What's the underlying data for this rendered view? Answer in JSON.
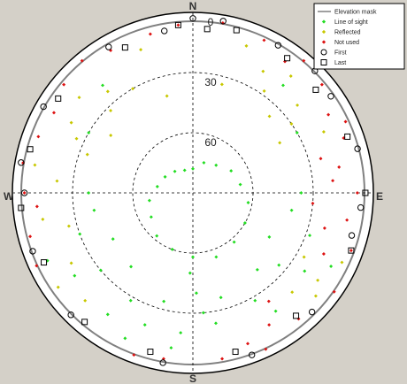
{
  "chart_data": {
    "type": "scatter",
    "projection": "polar-skyplot",
    "directions": {
      "north": "N",
      "east": "E",
      "south": "S",
      "west": "W"
    },
    "elevation_rings": [
      {
        "elevation": 0,
        "label": "0"
      },
      {
        "elevation": 30,
        "label": "30"
      },
      {
        "elevation": 60,
        "label": "60"
      }
    ],
    "elevation_range": [
      0,
      90
    ],
    "grid": true,
    "legend_placement": "top-right",
    "legend": [
      {
        "key": "mask",
        "label": "Elevation mask",
        "marker": "line",
        "color": "#808080"
      },
      {
        "key": "los",
        "label": "Line of sight",
        "marker": "dot",
        "color": "#22dd22"
      },
      {
        "key": "reflected",
        "label": "Reflected",
        "marker": "dot",
        "color": "#c8c800"
      },
      {
        "key": "notused",
        "label": "Not used",
        "marker": "dot",
        "color": "#dd1111"
      },
      {
        "key": "first",
        "label": "First",
        "marker": "circle",
        "color": "#000000"
      },
      {
        "key": "last",
        "label": "Last",
        "marker": "square",
        "color": "#000000"
      }
    ],
    "elevation_mask_deg": 3,
    "series": [
      {
        "name": "Line of sight",
        "key": "los",
        "points_az_el": [
          [
            0,
            78
          ],
          [
            20,
            74
          ],
          [
            40,
            72
          ],
          [
            60,
            68
          ],
          [
            80,
            66
          ],
          [
            100,
            62
          ],
          [
            120,
            60
          ],
          [
            140,
            58
          ],
          [
            160,
            56
          ],
          [
            180,
            58
          ],
          [
            200,
            60
          ],
          [
            220,
            62
          ],
          [
            240,
            66
          ],
          [
            260,
            68
          ],
          [
            280,
            72
          ],
          [
            300,
            74
          ],
          [
            320,
            76
          ],
          [
            340,
            78
          ],
          [
            175,
            30
          ],
          [
            178,
            40
          ],
          [
            182,
            50
          ],
          [
            185,
            20
          ],
          [
            188,
            12
          ],
          [
            170,
            24
          ],
          [
            165,
            36
          ],
          [
            195,
            34
          ],
          [
            200,
            20
          ],
          [
            205,
            10
          ],
          [
            150,
            28
          ],
          [
            145,
            18
          ],
          [
            210,
            28
          ],
          [
            215,
            16
          ],
          [
            220,
            42
          ],
          [
            140,
            40
          ],
          [
            230,
            30
          ],
          [
            130,
            34
          ],
          [
            235,
            18
          ],
          [
            125,
            22
          ],
          [
            240,
            44
          ],
          [
            120,
            46
          ],
          [
            245,
            10
          ],
          [
            118,
            12
          ],
          [
            250,
            30
          ],
          [
            110,
            28
          ],
          [
            260,
            40
          ],
          [
            100,
            40
          ],
          [
            270,
            38
          ],
          [
            90,
            36
          ],
          [
            60,
            30
          ],
          [
            300,
            30
          ],
          [
            40,
            20
          ],
          [
            320,
            20
          ]
        ]
      },
      {
        "name": "Reflected",
        "key": "reflected",
        "points_az_el": [
          [
            30,
            20
          ],
          [
            35,
            28
          ],
          [
            40,
            14
          ],
          [
            45,
            36
          ],
          [
            50,
            22
          ],
          [
            320,
            24
          ],
          [
            315,
            32
          ],
          [
            310,
            16
          ],
          [
            305,
            40
          ],
          [
            300,
            20
          ],
          [
            330,
            30
          ],
          [
            340,
            14
          ],
          [
            20,
            12
          ],
          [
            280,
            10
          ],
          [
            275,
            22
          ],
          [
            260,
            14
          ],
          [
            255,
            26
          ],
          [
            240,
            20
          ],
          [
            235,
            8
          ],
          [
            225,
            14
          ],
          [
            130,
            10
          ],
          [
            135,
            20
          ],
          [
            125,
            14
          ],
          [
            120,
            26
          ],
          [
            115,
            8
          ],
          [
            290,
            34
          ],
          [
            295,
            26
          ],
          [
            60,
            40
          ],
          [
            55,
            30
          ],
          [
            65,
            18
          ],
          [
            345,
            40
          ],
          [
            15,
            34
          ]
        ]
      },
      {
        "name": "Not used",
        "key": "notused",
        "points_az_el": [
          [
            70,
            10
          ],
          [
            80,
            16
          ],
          [
            90,
            8
          ],
          [
            100,
            12
          ],
          [
            110,
            6
          ],
          [
            75,
            24
          ],
          [
            85,
            20
          ],
          [
            95,
            30
          ],
          [
            105,
            22
          ],
          [
            115,
            18
          ],
          [
            140,
            8
          ],
          [
            150,
            14
          ],
          [
            155,
            4
          ],
          [
            160,
            10
          ],
          [
            145,
            24
          ],
          [
            270,
            6
          ],
          [
            280,
            4
          ],
          [
            290,
            8
          ],
          [
            300,
            10
          ],
          [
            310,
            6
          ],
          [
            320,
            4
          ],
          [
            330,
            8
          ],
          [
            50,
            6
          ],
          [
            40,
            4
          ],
          [
            35,
            10
          ],
          [
            25,
            6
          ],
          [
            10,
            4
          ],
          [
            355,
            6
          ],
          [
            345,
            8
          ],
          [
            265,
            12
          ],
          [
            255,
            6
          ],
          [
            245,
            4
          ],
          [
            170,
            6
          ],
          [
            190,
            6
          ],
          [
            200,
            4
          ],
          [
            60,
            12
          ],
          [
            65,
            6
          ],
          [
            125,
            4
          ]
        ]
      },
      {
        "name": "First",
        "key": "first",
        "points_az_el": [
          [
            0,
            3
          ],
          [
            350,
            8
          ],
          [
            330,
            6
          ],
          [
            300,
            4
          ],
          [
            280,
            3
          ],
          [
            270,
            6
          ],
          [
            250,
            5
          ],
          [
            225,
            4
          ],
          [
            190,
            4
          ],
          [
            160,
            4
          ],
          [
            135,
            6
          ],
          [
            105,
            8
          ],
          [
            95,
            6
          ],
          [
            75,
            5
          ],
          [
            55,
            6
          ],
          [
            45,
            4
          ],
          [
            30,
            5
          ],
          [
            10,
            3
          ]
        ]
      },
      {
        "name": "Last",
        "key": "last",
        "points_az_el": [
          [
            355,
            6
          ],
          [
            335,
            10
          ],
          [
            305,
            8
          ],
          [
            285,
            6
          ],
          [
            265,
            4
          ],
          [
            245,
            8
          ],
          [
            220,
            6
          ],
          [
            195,
            8
          ],
          [
            165,
            8
          ],
          [
            140,
            10
          ],
          [
            110,
            6
          ],
          [
            90,
            4
          ],
          [
            70,
            8
          ],
          [
            50,
            10
          ],
          [
            35,
            8
          ],
          [
            15,
            6
          ],
          [
            5,
            8
          ]
        ]
      }
    ]
  }
}
